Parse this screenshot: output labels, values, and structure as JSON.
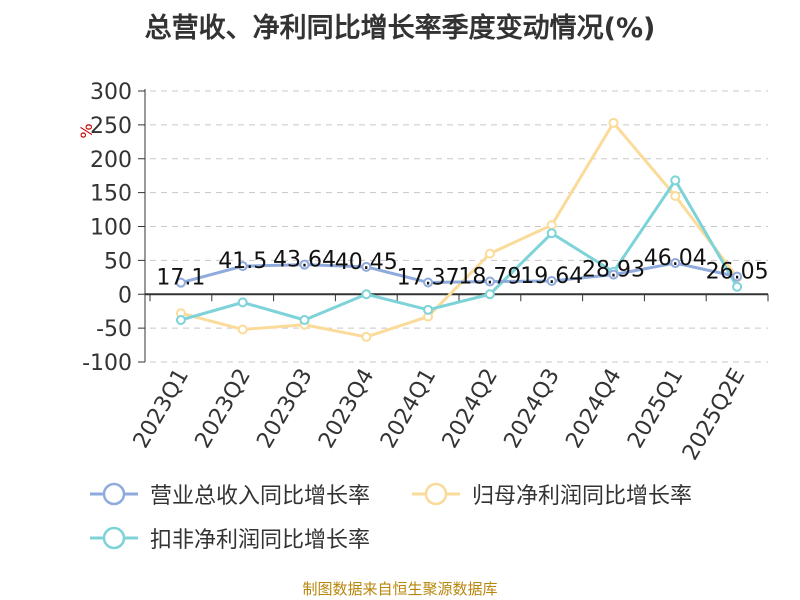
{
  "chart_data": {
    "type": "line",
    "title": "总营收、净利同比增长率季度变动情况(%)",
    "ylabel": "%",
    "xlabel": "",
    "ylim": [
      -100,
      300
    ],
    "yticks": [
      -100,
      -50,
      0,
      50,
      100,
      150,
      200,
      250,
      300
    ],
    "grid": true,
    "legend_position": "bottom",
    "categories": [
      "2023Q1",
      "2023Q2",
      "2023Q3",
      "2023Q4",
      "2024Q1",
      "2024Q2",
      "2024Q3",
      "2024Q4",
      "2025Q1",
      "2025Q2E"
    ],
    "series": [
      {
        "name": "营业总收入同比增长率",
        "color": "#8faadc",
        "values": [
          17.1,
          41.5,
          43.64,
          40.45,
          17.37,
          18.79,
          19.64,
          28.93,
          46.04,
          26.05
        ],
        "labels": [
          "17.1",
          "41.5",
          "43.64",
          "40.45",
          "17.37",
          "18.79",
          "19.64",
          "28.93",
          "46.04",
          "26.05"
        ]
      },
      {
        "name": "归母净利润同比增长率",
        "color": "#fbdb9a",
        "values": [
          -28,
          -52,
          -45,
          -63,
          -33,
          60,
          102,
          253,
          145,
          25
        ]
      },
      {
        "name": "扣非净利润同比增长率",
        "color": "#7dd3d8",
        "values": [
          -38,
          -12,
          -38,
          0,
          -23,
          0,
          90,
          33,
          168,
          11
        ]
      }
    ]
  },
  "footer": "制图数据来自恒生聚源数据库"
}
